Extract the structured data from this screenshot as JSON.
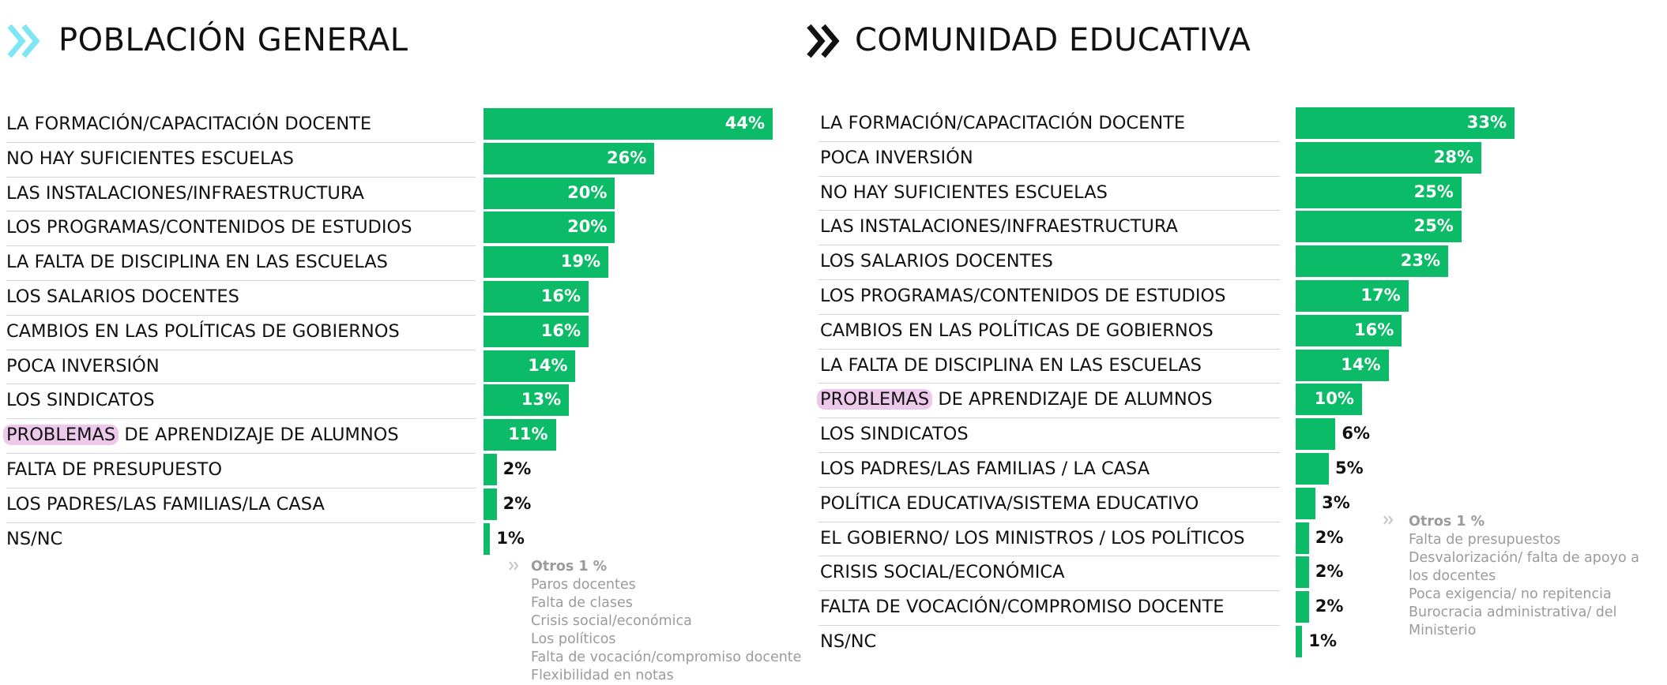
{
  "colors": {
    "bar": "#0bbb67",
    "highlight": "#ecc8ea",
    "left_chevron": "#7ee6f5",
    "right_chevron": "#111111",
    "note_text": "#9b9b9b"
  },
  "panels": [
    {
      "title": "POBLACIÓN GENERAL",
      "icon": "double-chevron-right-icon",
      "highlight_word": "PROBLEMAS",
      "note": {
        "title": "Otros 1 %",
        "items": [
          "Paros docentes",
          "Falta de clases",
          "Crisis social/económica",
          "Los políticos",
          "Falta de vocación/compromiso docente",
          "Flexibilidad en notas"
        ]
      }
    },
    {
      "title": "COMUNIDAD EDUCATIVA",
      "icon": "double-chevron-right-icon",
      "highlight_word": "PROBLEMAS",
      "note": {
        "title": "Otros 1 %",
        "items": [
          "Falta de presupuestos",
          "Desvalorización/ falta de apoyo a",
          "los docentes",
          "Poca exigencia/ no repitencia",
          "Burocracia administrativa/ del",
          "Ministerio"
        ]
      }
    }
  ],
  "chart_data": [
    {
      "type": "bar",
      "orientation": "horizontal",
      "title": "POBLACIÓN GENERAL",
      "categories": [
        "LA FORMACIÓN/CAPACITACIÓN DOCENTE",
        "NO HAY SUFICIENTES  ESCUELAS",
        "LAS INSTALACIONES/INFRAESTRUCTURA",
        "LOS PROGRAMAS/CONTENIDOS DE ESTUDIOS",
        "LA FALTA DE DISCIPLINA EN LAS ESCUELAS",
        "LOS SALARIOS DOCENTES",
        "CAMBIOS EN LAS POLÍTICAS DE GOBIERNOS",
        "POCA INVERSIÓN",
        "LOS SINDICATOS",
        "PROBLEMAS DE APRENDIZAJE DE ALUMNOS",
        "FALTA DE PRESUPUESTO",
        "LOS PADRES/LAS FAMILIAS/LA CASA",
        "NS/NC"
      ],
      "values": [
        44,
        26,
        20,
        20,
        19,
        16,
        16,
        14,
        13,
        11,
        2,
        2,
        1
      ],
      "value_labels": [
        "44%",
        "26%",
        "20%",
        "20%",
        "19%",
        "16%",
        "16%",
        "14%",
        "13%",
        "11%",
        "2%",
        "2%",
        "1%"
      ],
      "xlim": [
        0,
        44
      ]
    },
    {
      "type": "bar",
      "orientation": "horizontal",
      "title": "COMUNIDAD EDUCATIVA",
      "categories": [
        "LA FORMACIÓN/CAPACITACIÓN DOCENTE",
        "POCA INVERSIÓN",
        "NO HAY SUFICIENTES ESCUELAS",
        "LAS INSTALACIONES/INFRAESTRUCTURA",
        "LOS SALARIOS DOCENTES",
        "LOS PROGRAMAS/CONTENIDOS DE ESTUDIOS",
        "CAMBIOS EN LAS POLÍTICAS DE GOBIERNOS",
        "LA FALTA DE DISCIPLINA EN LAS ESCUELAS",
        "PROBLEMAS DE APRENDIZAJE DE ALUMNOS",
        "LOS SINDICATOS",
        "LOS PADRES/LAS FAMILIAS / LA CASA",
        "POLÍTICA EDUCATIVA/SISTEMA EDUCATIVO",
        "EL GOBIERNO/ LOS MINISTROS / LOS POLÍTICOS",
        "CRISIS SOCIAL/ECONÓMICA",
        "FALTA DE VOCACIÓN/COMPROMISO DOCENTE",
        "NS/NC"
      ],
      "values": [
        33,
        28,
        25,
        25,
        23,
        17,
        16,
        14,
        10,
        6,
        5,
        3,
        2,
        2,
        2,
        1
      ],
      "value_labels": [
        "33%",
        "28%",
        "25%",
        "25%",
        "23%",
        "17%",
        "16%",
        "14%",
        "10%",
        "6%",
        "5%",
        "3%",
        "2%",
        "2%",
        "2%",
        "1%"
      ],
      "xlim": [
        0,
        33
      ]
    }
  ]
}
